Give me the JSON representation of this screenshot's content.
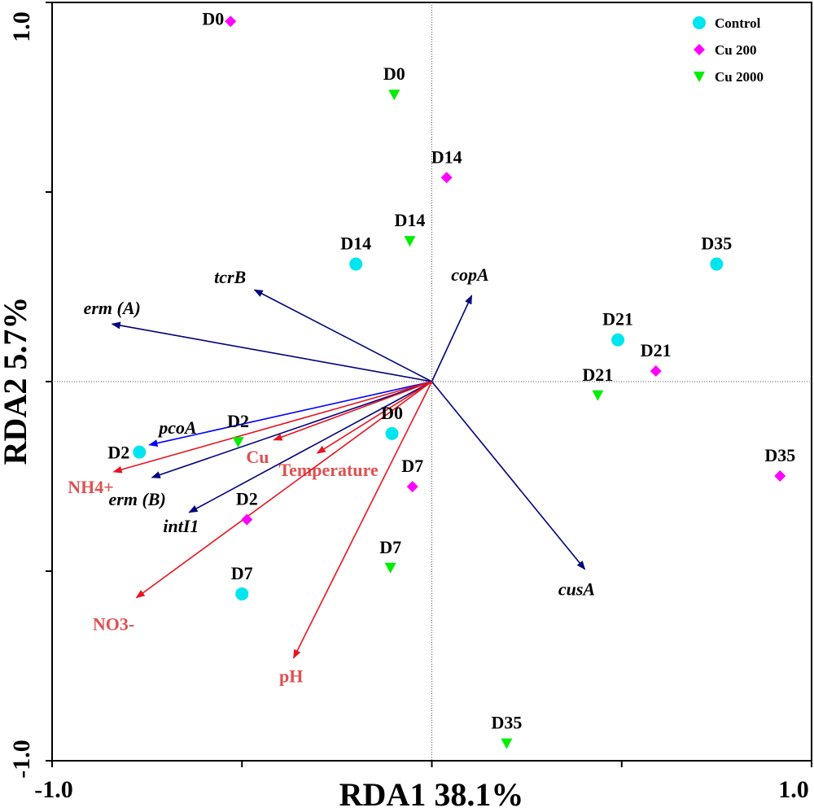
{
  "chart_data": {
    "type": "scatter",
    "subtype": "rda-biplot",
    "xlabel": "RDA1  38.1%",
    "ylabel": "RDA2  5.7%",
    "xlim": [
      -1.0,
      1.0
    ],
    "ylim": [
      -1.0,
      1.0
    ],
    "x_tick_labels": [
      "-1.0",
      "1.0"
    ],
    "y_tick_labels": [
      "-1.0",
      "1.0"
    ],
    "legend_position": "top-right",
    "colors": {
      "control": "#00e5ee",
      "cu200": "#ff00ff",
      "cu2000": "#00ee00",
      "species": "#000080",
      "pcoa": "#0000ff",
      "env": "#e8141e",
      "env_label": "#e05050"
    },
    "series": [
      {
        "name": "Control",
        "marker": "circle",
        "points": [
          {
            "label": "D0",
            "x": -0.105,
            "y": -0.137
          },
          {
            "label": "D2",
            "x": -0.77,
            "y": -0.186
          },
          {
            "label": "D7",
            "x": -0.5,
            "y": -0.56
          },
          {
            "label": "D14",
            "x": -0.2,
            "y": 0.31
          },
          {
            "label": "D21",
            "x": 0.49,
            "y": 0.11
          },
          {
            "label": "D35",
            "x": 0.75,
            "y": 0.31
          }
        ]
      },
      {
        "name": "Cu 200",
        "marker": "diamond",
        "points": [
          {
            "label": "D0",
            "x": -0.53,
            "y": 0.95
          },
          {
            "label": "D2",
            "x": -0.487,
            "y": -0.364
          },
          {
            "label": "D7",
            "x": -0.051,
            "y": -0.277
          },
          {
            "label": "D14",
            "x": 0.039,
            "y": 0.538
          },
          {
            "label": "D21",
            "x": 0.59,
            "y": 0.028
          },
          {
            "label": "D35",
            "x": 0.917,
            "y": -0.249
          }
        ]
      },
      {
        "name": "Cu 2000",
        "marker": "triangle-down",
        "points": [
          {
            "label": "D0",
            "x": -0.099,
            "y": 0.757
          },
          {
            "label": "D2",
            "x": -0.51,
            "y": -0.159
          },
          {
            "label": "D7",
            "x": -0.109,
            "y": -0.491
          },
          {
            "label": "D14",
            "x": -0.058,
            "y": 0.371
          },
          {
            "label": "D21",
            "x": 0.437,
            "y": -0.036
          },
          {
            "label": "D35",
            "x": 0.197,
            "y": -0.954
          }
        ]
      }
    ],
    "species_arrows": [
      {
        "label": "erm (A)",
        "x": -0.842,
        "y": 0.152
      },
      {
        "label": "tcrB",
        "x": -0.467,
        "y": 0.242
      },
      {
        "label": "copA",
        "x": 0.105,
        "y": 0.227
      },
      {
        "label": "cusA",
        "x": 0.403,
        "y": -0.495
      },
      {
        "label": "pcoA",
        "x": -0.744,
        "y": -0.167
      },
      {
        "label": "erm (B)",
        "x": -0.737,
        "y": -0.253
      },
      {
        "label": "intI1",
        "x": -0.639,
        "y": -0.345
      }
    ],
    "env_arrows": [
      {
        "label": "NH4+",
        "x": -0.838,
        "y": -0.238
      },
      {
        "label": "Cu",
        "x": -0.416,
        "y": -0.154
      },
      {
        "label": "Temperature",
        "x": -0.302,
        "y": -0.189
      },
      {
        "label": "NO3-",
        "x": -0.778,
        "y": -0.57
      },
      {
        "label": "pH",
        "x": -0.364,
        "y": -0.729
      }
    ]
  }
}
